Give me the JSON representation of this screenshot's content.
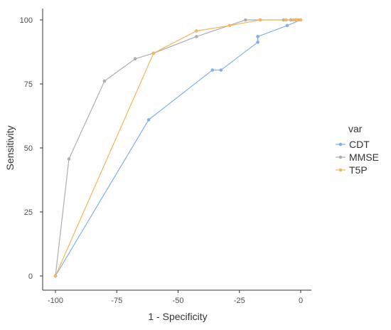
{
  "chart_data": {
    "type": "line",
    "title": "",
    "xlabel": "1 - Specificity",
    "ylabel": "Sensitivity",
    "xlim": [
      -100,
      0
    ],
    "ylim": [
      0,
      100
    ],
    "x_ticks": [
      -100,
      -75,
      -50,
      -25,
      0
    ],
    "y_ticks": [
      0,
      25,
      50,
      75,
      100
    ],
    "grid": false,
    "legend": {
      "title": "var",
      "position": "right"
    },
    "series": [
      {
        "name": "CDT",
        "color": "#7fb0ea",
        "points": [
          [
            -100,
            0
          ],
          [
            -62,
            61
          ],
          [
            -36,
            80.4
          ],
          [
            -32.5,
            80.4
          ],
          [
            -17.5,
            91.3
          ],
          [
            -17.5,
            93.5
          ],
          [
            -5.5,
            97.8
          ],
          [
            0,
            100
          ]
        ]
      },
      {
        "name": "MMSE",
        "color": "#aeaeae",
        "points": [
          [
            -100,
            0
          ],
          [
            -94.5,
            45.7
          ],
          [
            -80,
            76.1
          ],
          [
            -67.5,
            84.8
          ],
          [
            -60,
            87
          ],
          [
            -42.5,
            93.5
          ],
          [
            -22.5,
            100
          ],
          [
            -16.5,
            100
          ],
          [
            -7,
            100
          ],
          [
            -4,
            100
          ],
          [
            -2,
            100
          ],
          [
            -1,
            100
          ]
        ]
      },
      {
        "name": "T5P",
        "color": "#f0b85a",
        "points": [
          [
            -100,
            0
          ],
          [
            -60,
            87
          ],
          [
            -42.5,
            95.7
          ],
          [
            -29,
            97.8
          ],
          [
            -16.5,
            100
          ],
          [
            -6,
            100
          ],
          [
            -3,
            100
          ],
          [
            -1.5,
            100
          ],
          [
            0,
            100
          ]
        ]
      }
    ]
  }
}
